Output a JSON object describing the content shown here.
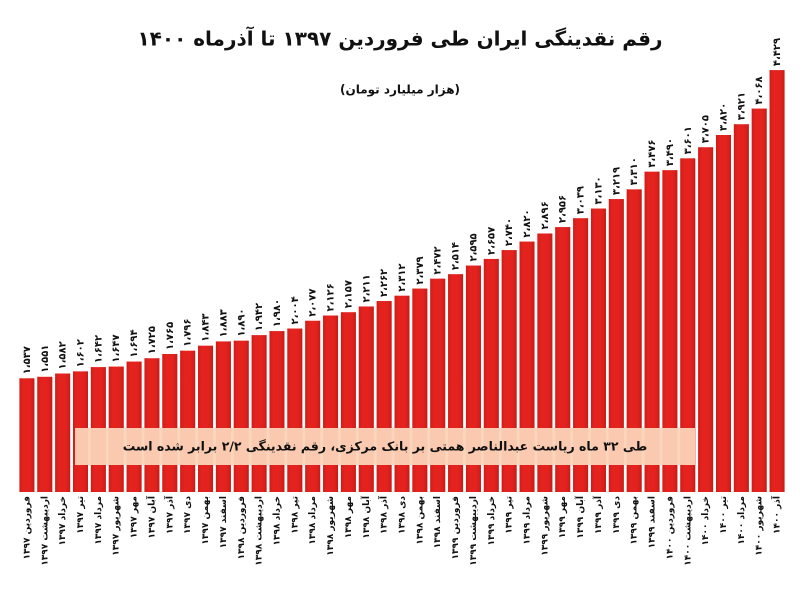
{
  "chart_data": {
    "type": "bar",
    "title": "رقم نقدینگی ایران طی فروردین ۱۳۹۷ تا آذرماه ۱۴۰۰",
    "subtitle": "(هزار میلیارد تومان)",
    "annotation": "طی ۳۲ ماه ریاست عبدالناصر همتی بر بانک مرکزی، رقم نقدینگی ۲/۲ برابر شده است",
    "color": "#e3211d",
    "ylim": [
      470,
      4430
    ],
    "categories": [
      "فروردین ۱۳۹۷",
      "اردیبهشت ۱۳۹۷",
      "خرداد ۱۳۹۷",
      "تیر ۱۳۹۷",
      "مرداد ۱۳۹۷",
      "شهریور ۱۳۹۷",
      "مهر ۱۳۹۷",
      "آبان ۱۳۹۷",
      "آذر ۱۳۹۷",
      "دی ۱۳۹۷",
      "بهمن ۱۳۹۷",
      "اسفند ۱۳۹۷",
      "فروردین ۱۳۹۸",
      "اردیبهشت ۱۳۹۸",
      "خرداد ۱۳۹۸",
      "تیر ۱۳۹۸",
      "مرداد ۱۳۹۸",
      "شهریور ۱۳۹۸",
      "مهر ۱۳۹۸",
      "آبان ۱۳۹۸",
      "آذر ۱۳۹۸",
      "دی ۱۳۹۸",
      "بهمن ۱۳۹۸",
      "اسفند ۱۳۹۸",
      "فروردین ۱۳۹۹",
      "اردیبهشت ۱۳۹۹",
      "خرداد ۱۳۹۹",
      "تیر ۱۳۹۹",
      "مرداد ۱۳۹۹",
      "شهریور ۱۳۹۹",
      "مهر ۱۳۹۹",
      "آبان ۱۳۹۹",
      "آذر ۱۳۹۹",
      "دی ۱۳۹۹",
      "بهمن ۱۳۹۹",
      "اسفند ۱۳۹۹",
      "فروردین ۱۴۰۰",
      "اردیبهشت ۱۴۰۰",
      "خرداد ۱۴۰۰",
      "تیر ۱۴۰۰",
      "مرداد ۱۴۰۰",
      "شهریور ۱۴۰۰",
      "آذر ۱۴۰۰"
    ],
    "values": [
      1537,
      1551,
      1582,
      1602,
      1642,
      1647,
      1694,
      1725,
      1765,
      1796,
      1843,
      1883,
      1890,
      1942,
      1980,
      2004,
      2077,
      2126,
      2157,
      2211,
      2262,
      2312,
      2379,
      2472,
      2514,
      2595,
      2657,
      2740,
      2820,
      2896,
      2956,
      3039,
      3130,
      3219,
      3310,
      3476,
      3490,
      3601,
      3705,
      3820,
      3921,
      4068,
      4429
    ],
    "value_labels": [
      "۱،۵۳۷",
      "۱،۵۵۱",
      "۱،۵۸۲",
      "۱،۶۰۲",
      "۱،۶۴۲",
      "۱،۶۴۷",
      "۱،۶۹۴",
      "۱،۷۲۵",
      "۱،۷۶۵",
      "۱،۷۹۶",
      "۱،۸۴۳",
      "۱،۸۸۳",
      "۱،۸۹۰",
      "۱،۹۴۲",
      "۱،۹۸۰",
      "۲،۰۰۴",
      "۲،۰۷۷",
      "۲،۱۲۶",
      "۲،۱۵۷",
      "۲،۲۱۱",
      "۲،۲۶۲",
      "۲،۳۱۲",
      "۲،۳۷۹",
      "۲،۴۷۲",
      "۲،۵۱۴",
      "۲،۵۹۵",
      "۲،۶۵۷",
      "۲،۷۴۰",
      "۲،۸۲۰",
      "۲،۸۹۶",
      "۲،۹۵۶",
      "۳،۰۳۹",
      "۳،۱۳۰",
      "۳،۲۱۹",
      "۳،۳۱۰",
      "۳،۴۷۶",
      "۳،۴۹۰",
      "۳،۶۰۱",
      "۳،۷۰۵",
      "۳،۸۲۰",
      "۳،۹۲۱",
      "۴،۰۶۸",
      "۴،۴۲۹"
    ]
  }
}
